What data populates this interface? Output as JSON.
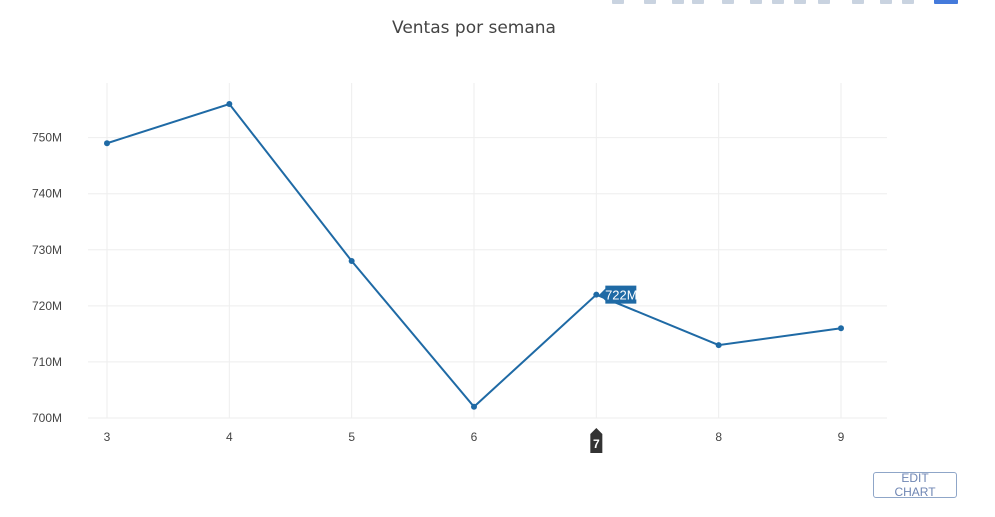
{
  "chart_data": {
    "type": "line",
    "title": "Ventas por semana",
    "x": [
      3,
      4,
      5,
      6,
      7,
      8,
      9
    ],
    "series": [
      {
        "values": [
          749,
          756,
          728,
          702,
          722,
          713,
          716
        ]
      }
    ],
    "x_ticks": [
      "3",
      "4",
      "5",
      "6",
      "7",
      "8",
      "9"
    ],
    "y_ticks": [
      700,
      710,
      720,
      730,
      740,
      750
    ],
    "y_tick_labels": [
      "700M",
      "710M",
      "720M",
      "730M",
      "740M",
      "750M"
    ],
    "xlim": [
      3,
      9
    ],
    "ylim": [
      700,
      756
    ],
    "grid": true,
    "line_color": "#1f6aa5",
    "hover": {
      "x_label": "7",
      "value_label": "722M",
      "index": 4
    }
  },
  "ui": {
    "edit_button_label": "EDIT CHART",
    "modebar_icons": [
      "camera-icon",
      "zoom-icon",
      "pan-icon",
      "lasso-icon",
      "select-icon",
      "zoom-in-icon",
      "zoom-out-icon",
      "autoscale-icon",
      "reset-axes-icon",
      "spike-lines-icon",
      "hover-closest-icon",
      "hover-compare-icon",
      "plotly-logo-icon"
    ]
  }
}
